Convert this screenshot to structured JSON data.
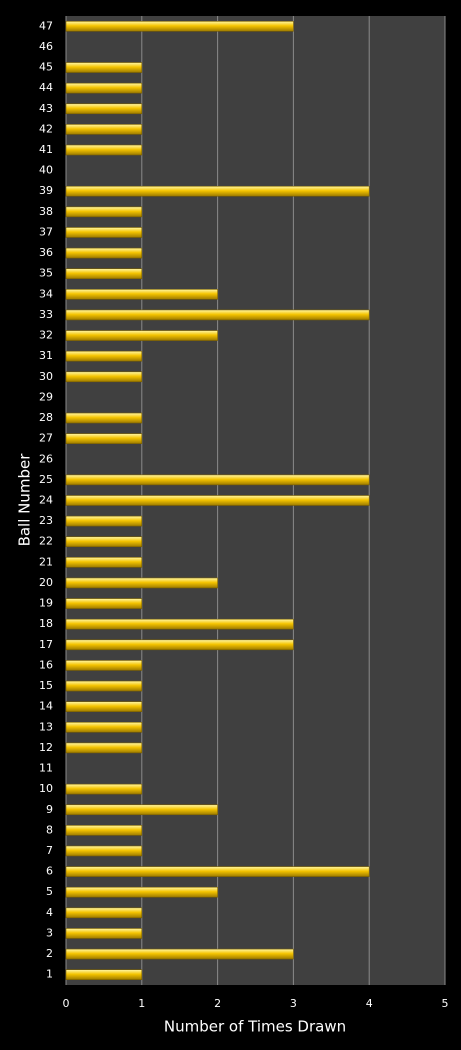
{
  "chart_data": {
    "type": "bar",
    "orientation": "horizontal",
    "x_label": "Number of Times Drawn",
    "y_label": "Ball Number",
    "categories": [
      "1",
      "2",
      "3",
      "4",
      "5",
      "6",
      "7",
      "8",
      "9",
      "10",
      "11",
      "12",
      "13",
      "14",
      "15",
      "16",
      "17",
      "18",
      "19",
      "20",
      "21",
      "22",
      "23",
      "24",
      "25",
      "26",
      "27",
      "28",
      "29",
      "30",
      "31",
      "32",
      "33",
      "34",
      "35",
      "36",
      "37",
      "38",
      "39",
      "40",
      "41",
      "42",
      "43",
      "44",
      "45",
      "46",
      "47"
    ],
    "values": [
      1,
      3,
      1,
      1,
      2,
      4,
      1,
      1,
      2,
      1,
      0,
      1,
      1,
      1,
      1,
      1,
      3,
      3,
      1,
      2,
      1,
      1,
      1,
      4,
      4,
      0,
      1,
      1,
      0,
      1,
      1,
      2,
      4,
      2,
      1,
      1,
      1,
      1,
      4,
      0,
      1,
      1,
      1,
      1,
      1,
      0,
      3
    ],
    "color": "#f5c400",
    "xlim": [
      0,
      5
    ],
    "xticks": [
      0,
      1,
      2,
      3,
      4,
      5
    ],
    "grid": true
  }
}
